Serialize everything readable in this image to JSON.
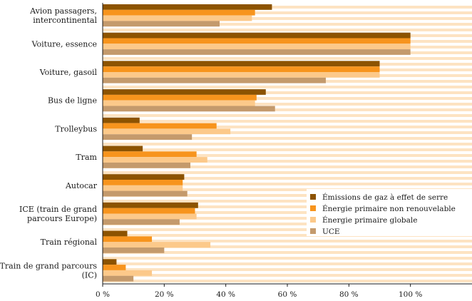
{
  "chart_data": {
    "type": "bar",
    "orientation": "horizontal",
    "categories": [
      [
        "Avion passagers,",
        "intercontinental"
      ],
      [
        "Voiture, essence"
      ],
      [
        "Voiture, gasoil"
      ],
      [
        "Bus de ligne"
      ],
      [
        "Trolleybus"
      ],
      [
        "Tram"
      ],
      [
        "Autocar"
      ],
      [
        "ICE (train de grand",
        "parcours Europe)"
      ],
      [
        "Train régional"
      ],
      [
        "Train de grand parcours",
        "(IC)"
      ]
    ],
    "series": [
      {
        "name": "Émissions de gaz à effet de serre",
        "color": "#8c5300",
        "values": [
          55,
          100,
          90,
          53,
          12,
          13,
          26.5,
          31,
          8,
          4.5
        ]
      },
      {
        "name": "Énergie primaire non renouvelable",
        "color": "#f7941d",
        "values": [
          49.5,
          100,
          90,
          50,
          37,
          30.5,
          26,
          30,
          16,
          7.5
        ]
      },
      {
        "name": "Énergie primaire globale",
        "color": "#fcc98a",
        "values": [
          48.5,
          100,
          90,
          49.5,
          41.5,
          34,
          26,
          30.5,
          35,
          16
        ]
      },
      {
        "name": "UCE",
        "color": "#c49a6c",
        "values": [
          38,
          100,
          72.5,
          56,
          29,
          28.5,
          27.5,
          25,
          20,
          10
        ]
      }
    ],
    "xlim": [
      0,
      120
    ],
    "xticks": [
      0,
      20,
      40,
      60,
      80,
      100
    ],
    "tick_suffix": " %",
    "legend_position": "right-lower",
    "background": "striped",
    "stripe_color": "#fde3c2"
  }
}
